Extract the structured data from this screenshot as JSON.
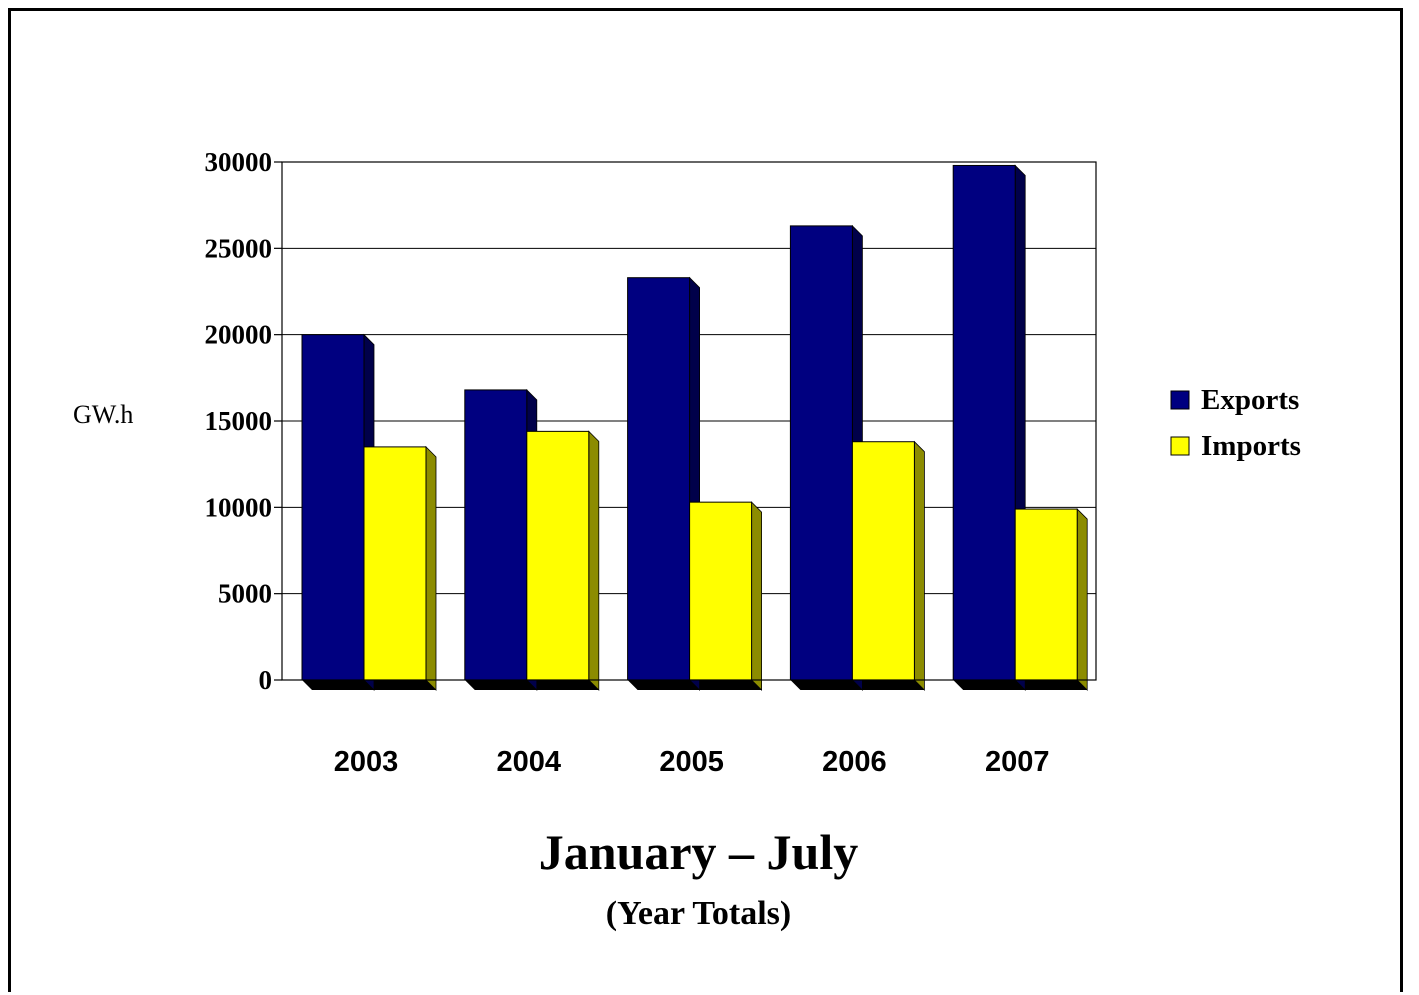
{
  "chart_data": {
    "type": "bar",
    "style": "3d-clustered",
    "categories": [
      "2003",
      "2004",
      "2005",
      "2006",
      "2007"
    ],
    "series": [
      {
        "name": "Exports",
        "values": [
          20000,
          16800,
          23300,
          26300,
          29800
        ],
        "color": "#000080"
      },
      {
        "name": "Imports",
        "values": [
          13500,
          14400,
          10300,
          13800,
          9900
        ],
        "color": "#ffff00"
      }
    ],
    "title": "January – July",
    "subtitle": "(Year Totals)",
    "xlabel": "",
    "ylabel": "GW.h",
    "ylim": [
      0,
      30000
    ],
    "yticks": [
      0,
      5000,
      10000,
      15000,
      20000,
      25000,
      30000
    ],
    "grid": true,
    "legend_position": "right"
  }
}
